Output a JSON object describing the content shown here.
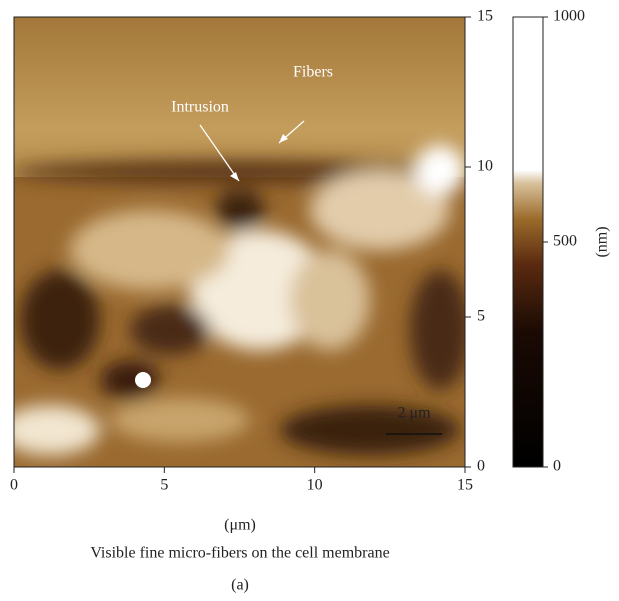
{
  "figure": {
    "annotations": [
      "Intrusion",
      "Fibers"
    ],
    "scale_bar": "2 μm",
    "x_axis": {
      "label": "(μm)",
      "lim": [
        0,
        15
      ],
      "ticks": [
        0,
        5,
        10,
        15
      ]
    },
    "y_axis": {
      "lim": [
        0,
        15
      ],
      "ticks": [
        0,
        5,
        10,
        15
      ]
    },
    "colorbar": {
      "label": "(nm)",
      "lim": [
        0,
        1000
      ],
      "ticks": [
        0,
        500,
        1000
      ]
    },
    "caption": "Visible fine micro-fibers on the cell membrane",
    "panel": "(a)"
  }
}
